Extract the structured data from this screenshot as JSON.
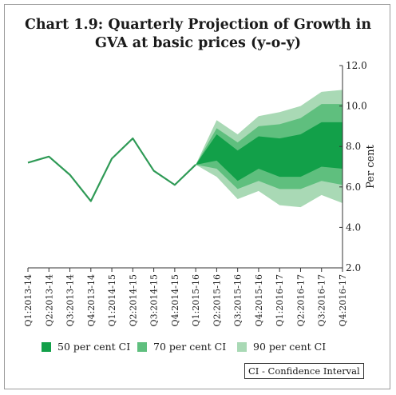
{
  "chart_data": {
    "type": "line",
    "title_line1": "Chart 1.9: Quarterly Projection of Growth in",
    "title_line2": "GVA at basic prices (y-o-y)",
    "ylabel": "Per cent",
    "ylim": [
      2.0,
      12.0
    ],
    "y_ticks": [
      "2.0",
      "4.0",
      "6.0",
      "8.0",
      "10.0",
      "12.0"
    ],
    "y_tick_values": [
      2.0,
      4.0,
      6.0,
      8.0,
      10.0,
      12.0
    ],
    "categories": [
      "Q1:2013-14",
      "Q2:2013-14",
      "Q3:2013-14",
      "Q4:2013-14",
      "Q1:2014-15",
      "Q2:2014-15",
      "Q3:2014-15",
      "Q4:2014-15",
      "Q1:2015-16",
      "Q2:2015-16",
      "Q3:2015-16",
      "Q4:2015-16",
      "Q1:2016-17",
      "Q2:2016-17",
      "Q3:2016-17",
      "Q4:2016-17"
    ],
    "actual": [
      7.2,
      7.5,
      6.6,
      5.3,
      7.4,
      8.4,
      6.8,
      6.1,
      7.1,
      null,
      null,
      null,
      null,
      null,
      null,
      null
    ],
    "bands": [
      {
        "name": "90 per cent CI",
        "color": "#a9d9b5",
        "upper": [
          null,
          null,
          null,
          null,
          null,
          null,
          null,
          null,
          7.1,
          9.3,
          8.6,
          9.5,
          9.7,
          10.0,
          10.7,
          10.8
        ],
        "lower": [
          null,
          null,
          null,
          null,
          null,
          null,
          null,
          null,
          7.1,
          6.5,
          5.4,
          5.8,
          5.1,
          5.0,
          5.6,
          5.2
        ]
      },
      {
        "name": "70 per cent CI",
        "color": "#5fbf7e",
        "upper": [
          null,
          null,
          null,
          null,
          null,
          null,
          null,
          null,
          7.1,
          8.9,
          8.2,
          9.0,
          9.1,
          9.4,
          10.1,
          10.1
        ],
        "lower": [
          null,
          null,
          null,
          null,
          null,
          null,
          null,
          null,
          7.1,
          6.9,
          5.9,
          6.3,
          5.9,
          5.9,
          6.3,
          6.1
        ]
      },
      {
        "name": "50 per cent CI",
        "color": "#12a049",
        "upper": [
          null,
          null,
          null,
          null,
          null,
          null,
          null,
          null,
          7.1,
          8.6,
          7.8,
          8.5,
          8.4,
          8.6,
          9.2,
          9.2
        ],
        "lower": [
          null,
          null,
          null,
          null,
          null,
          null,
          null,
          null,
          7.1,
          7.3,
          6.3,
          6.9,
          6.5,
          6.5,
          7.0,
          6.9
        ]
      }
    ],
    "legend": [
      {
        "label": "50 per cent CI",
        "color": "#12a049"
      },
      {
        "label": "70 per cent CI",
        "color": "#5fbf7e"
      },
      {
        "label": "90 per cent CI",
        "color": "#a9d9b5"
      }
    ],
    "line_color": "#2f9a56",
    "note": "CI - Confidence Interval"
  }
}
